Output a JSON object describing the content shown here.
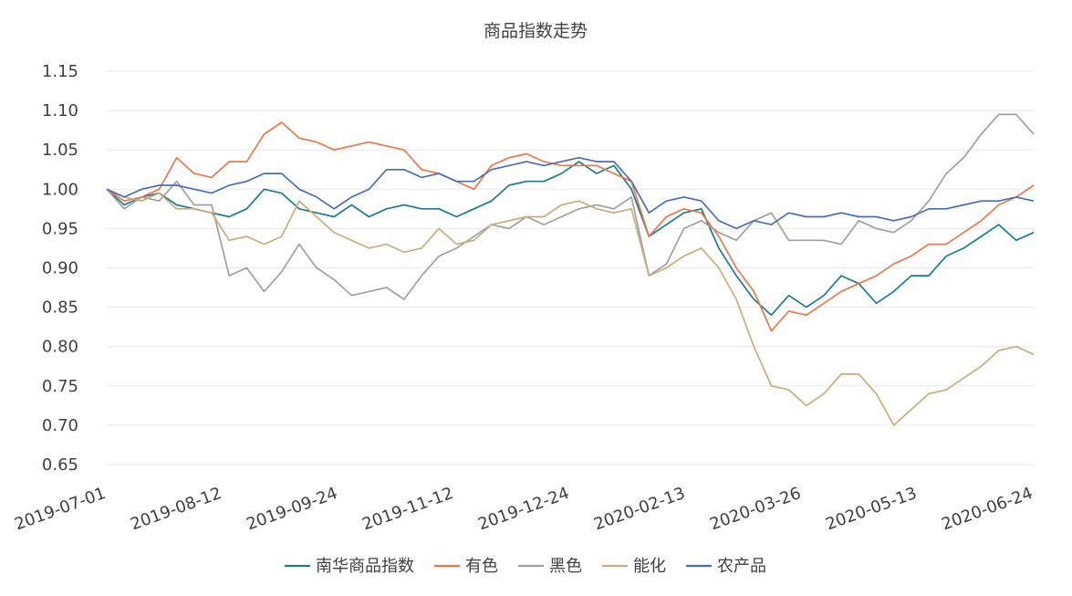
{
  "chart_data": {
    "type": "line",
    "title": "商品指数走势",
    "xlabel": "",
    "ylabel": "",
    "ylim": [
      0.65,
      1.15
    ],
    "yticks": [
      "1.15",
      "1.10",
      "1.05",
      "1.00",
      "0.95",
      "0.90",
      "0.85",
      "0.80",
      "0.75",
      "0.70",
      "0.65"
    ],
    "xticks": [
      "2019-07-01",
      "2019-08-12",
      "2019-09-24",
      "2019-11-12",
      "2019-12-24",
      "2020-02-13",
      "2020-03-26",
      "2020-05-13",
      "2020-06-24"
    ],
    "grid": true,
    "legend_position": "bottom",
    "series": [
      {
        "name": "南华商品指数",
        "color": "#1a7c8c",
        "values": [
          1.0,
          0.98,
          0.99,
          0.995,
          0.98,
          0.975,
          0.97,
          0.965,
          0.975,
          1.0,
          0.995,
          0.975,
          0.97,
          0.965,
          0.98,
          0.965,
          0.975,
          0.98,
          0.975,
          0.975,
          0.965,
          0.975,
          0.985,
          1.005,
          1.01,
          1.01,
          1.02,
          1.035,
          1.02,
          1.03,
          1.0,
          0.94,
          0.955,
          0.97,
          0.975,
          0.925,
          0.89,
          0.86,
          0.84,
          0.865,
          0.85,
          0.865,
          0.89,
          0.88,
          0.855,
          0.87,
          0.89,
          0.89,
          0.915,
          0.925,
          0.94,
          0.955,
          0.935,
          0.945
        ]
      },
      {
        "name": "有色",
        "color": "#e8794a",
        "values": [
          1.0,
          0.985,
          0.99,
          1.0,
          1.04,
          1.02,
          1.015,
          1.035,
          1.035,
          1.07,
          1.085,
          1.065,
          1.06,
          1.05,
          1.055,
          1.06,
          1.055,
          1.05,
          1.025,
          1.02,
          1.01,
          1.0,
          1.03,
          1.04,
          1.045,
          1.035,
          1.03,
          1.03,
          1.03,
          1.02,
          1.01,
          0.94,
          0.965,
          0.975,
          0.97,
          0.94,
          0.9,
          0.87,
          0.82,
          0.845,
          0.84,
          0.855,
          0.87,
          0.88,
          0.89,
          0.905,
          0.915,
          0.93,
          0.93,
          0.945,
          0.96,
          0.98,
          0.99,
          1.005
        ]
      },
      {
        "name": "黑色",
        "color": "#a0a0a0",
        "values": [
          1.0,
          0.975,
          0.99,
          0.985,
          1.01,
          0.98,
          0.98,
          0.89,
          0.9,
          0.87,
          0.895,
          0.93,
          0.9,
          0.885,
          0.865,
          0.87,
          0.875,
          0.86,
          0.89,
          0.915,
          0.925,
          0.94,
          0.955,
          0.95,
          0.965,
          0.955,
          0.965,
          0.975,
          0.98,
          0.975,
          0.99,
          0.89,
          0.905,
          0.95,
          0.96,
          0.945,
          0.935,
          0.96,
          0.97,
          0.935,
          0.935,
          0.935,
          0.93,
          0.96,
          0.95,
          0.945,
          0.96,
          0.985,
          1.02,
          1.04,
          1.07,
          1.095,
          1.095,
          1.07
        ]
      },
      {
        "name": "能化",
        "color": "#c8ad7a",
        "values": [
          1.0,
          0.99,
          0.985,
          0.995,
          0.975,
          0.975,
          0.97,
          0.935,
          0.94,
          0.93,
          0.94,
          0.985,
          0.965,
          0.945,
          0.935,
          0.925,
          0.93,
          0.92,
          0.925,
          0.95,
          0.93,
          0.935,
          0.955,
          0.96,
          0.965,
          0.965,
          0.98,
          0.985,
          0.975,
          0.97,
          0.975,
          0.89,
          0.9,
          0.915,
          0.925,
          0.9,
          0.86,
          0.8,
          0.75,
          0.745,
          0.725,
          0.74,
          0.765,
          0.765,
          0.74,
          0.7,
          0.72,
          0.74,
          0.745,
          0.76,
          0.775,
          0.795,
          0.8,
          0.79
        ]
      },
      {
        "name": "农产品",
        "color": "#4a6eb5",
        "values": [
          1.0,
          0.99,
          1.0,
          1.005,
          1.005,
          1.0,
          0.995,
          1.005,
          1.01,
          1.02,
          1.02,
          1.0,
          0.99,
          0.975,
          0.99,
          1.0,
          1.025,
          1.025,
          1.015,
          1.02,
          1.01,
          1.01,
          1.025,
          1.03,
          1.035,
          1.03,
          1.035,
          1.04,
          1.035,
          1.035,
          1.01,
          0.97,
          0.985,
          0.99,
          0.985,
          0.96,
          0.95,
          0.96,
          0.955,
          0.97,
          0.965,
          0.965,
          0.97,
          0.965,
          0.965,
          0.96,
          0.965,
          0.975,
          0.975,
          0.98,
          0.985,
          0.985,
          0.99,
          0.985
        ]
      }
    ]
  }
}
